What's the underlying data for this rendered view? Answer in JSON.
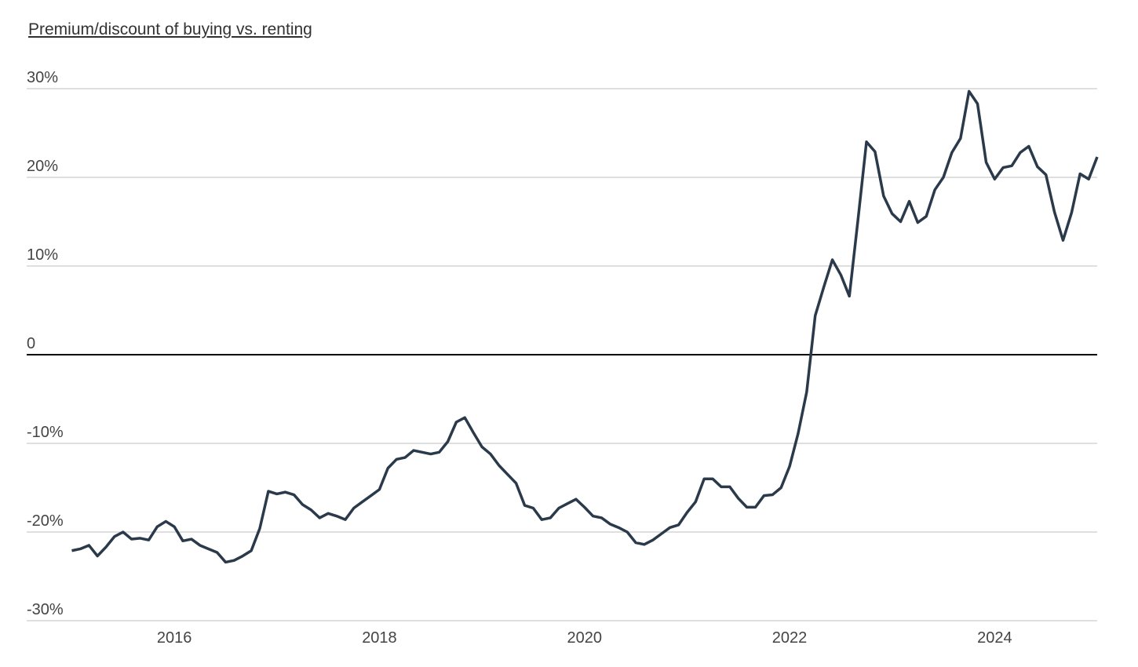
{
  "chart_data": {
    "type": "line",
    "title": "Premium/discount of buying vs. renting",
    "x": [
      2015,
      2015.083,
      2015.167,
      2015.25,
      2015.333,
      2015.417,
      2015.5,
      2015.583,
      2015.667,
      2015.75,
      2015.833,
      2015.917,
      2016,
      2016.083,
      2016.167,
      2016.25,
      2016.333,
      2016.417,
      2016.5,
      2016.583,
      2016.667,
      2016.75,
      2016.833,
      2016.917,
      2017,
      2017.083,
      2017.167,
      2017.25,
      2017.333,
      2017.417,
      2017.5,
      2017.583,
      2017.667,
      2017.75,
      2017.833,
      2017.917,
      2018,
      2018.083,
      2018.167,
      2018.25,
      2018.333,
      2018.417,
      2018.5,
      2018.583,
      2018.667,
      2018.75,
      2018.833,
      2018.917,
      2019,
      2019.083,
      2019.167,
      2019.25,
      2019.333,
      2019.417,
      2019.5,
      2019.583,
      2019.667,
      2019.75,
      2019.833,
      2019.917,
      2020,
      2020.083,
      2020.167,
      2020.25,
      2020.333,
      2020.417,
      2020.5,
      2020.583,
      2020.667,
      2020.75,
      2020.833,
      2020.917,
      2021,
      2021.083,
      2021.167,
      2021.25,
      2021.333,
      2021.417,
      2021.5,
      2021.583,
      2021.667,
      2021.75,
      2021.833,
      2021.917,
      2022,
      2022.083,
      2022.167,
      2022.25,
      2022.333,
      2022.417,
      2022.5,
      2022.583,
      2022.667,
      2022.75,
      2022.833,
      2022.917,
      2023,
      2023.083,
      2023.167,
      2023.25,
      2023.333,
      2023.417,
      2023.5,
      2023.583,
      2023.667,
      2023.75,
      2023.833,
      2023.917,
      2024,
      2024.083,
      2024.167,
      2024.25,
      2024.333,
      2024.417,
      2024.5,
      2024.583,
      2024.667,
      2024.75,
      2024.833,
      2024.917,
      2025
    ],
    "series": [
      {
        "color": "#2b3a4a",
        "values": [
          -22.1,
          -21.9,
          -21.5,
          -22.7,
          -21.7,
          -20.5,
          -20.0,
          -20.8,
          -20.7,
          -20.9,
          -19.4,
          -18.8,
          -19.4,
          -21.0,
          -20.8,
          -21.5,
          -21.9,
          -22.3,
          -23.4,
          -23.2,
          -22.7,
          -22.1,
          -19.6,
          -15.4,
          -15.7,
          -15.5,
          -15.8,
          -16.9,
          -17.5,
          -18.4,
          -17.9,
          -18.2,
          -18.6,
          -17.3,
          -16.6,
          -15.9,
          -15.2,
          -12.8,
          -11.8,
          -11.6,
          -10.8,
          -11.0,
          -11.2,
          -11.0,
          -9.8,
          -7.6,
          -7.1,
          -8.8,
          -10.4,
          -11.2,
          -12.5,
          -13.5,
          -14.5,
          -17.0,
          -17.3,
          -18.6,
          -18.4,
          -17.3,
          -16.8,
          -16.3,
          -17.2,
          -18.2,
          -18.4,
          -19.1,
          -19.5,
          -20.0,
          -21.2,
          -21.4,
          -20.9,
          -20.2,
          -19.5,
          -19.2,
          -17.8,
          -16.6,
          -14.0,
          -14.0,
          -14.9,
          -14.9,
          -16.2,
          -17.2,
          -17.2,
          -15.9,
          -15.8,
          -15.0,
          -12.6,
          -8.9,
          -4.2,
          4.4,
          7.6,
          10.7,
          9.0,
          6.6,
          15.2,
          24.0,
          22.9,
          17.9,
          15.9,
          15.0,
          17.3,
          14.9,
          15.6,
          18.6,
          20.0,
          22.8,
          24.4,
          29.7,
          28.3,
          21.7,
          19.8,
          21.1,
          21.3,
          22.8,
          23.5,
          21.2,
          20.3,
          16.1,
          12.9,
          16.0,
          20.4,
          19.8,
          22.3
        ]
      }
    ],
    "xlim": [
      2014.56,
      2025.0
    ],
    "ylim": [
      -30,
      30
    ],
    "xticks": [
      2016,
      2018,
      2020,
      2022,
      2024
    ],
    "yticks": [
      {
        "value": -30,
        "label": "-30%"
      },
      {
        "value": -20,
        "label": "-20%"
      },
      {
        "value": -10,
        "label": "-10%"
      },
      0,
      {
        "value": 10,
        "label": "10%"
      },
      {
        "value": 20,
        "label": "20%"
      },
      {
        "value": 30,
        "label": "30%"
      }
    ],
    "grid": true
  }
}
